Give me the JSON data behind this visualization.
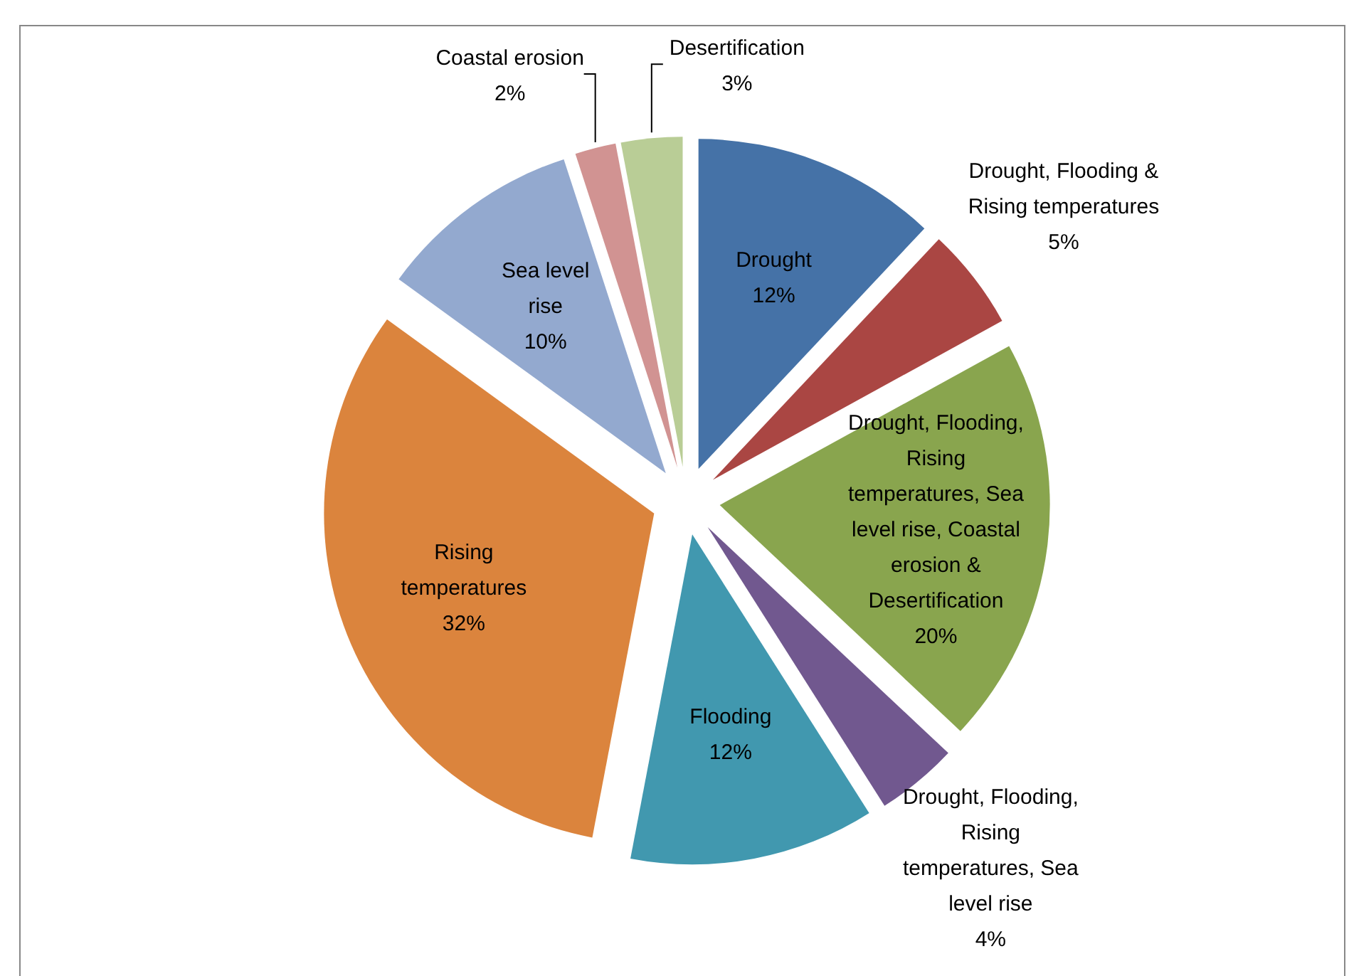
{
  "chart_data": {
    "type": "pie",
    "categories": [
      "Drought",
      "Drought, Flooding & Rising temperatures",
      "Drought, Flooding, Rising temperatures, Sea level rise, Coastal erosion & Desertification",
      "Drought, Flooding, Rising temperatures, Sea level rise",
      "Flooding",
      "Rising temperatures",
      "Sea level rise",
      "Coastal erosion",
      "Desertification"
    ],
    "values": [
      12,
      5,
      20,
      4,
      12,
      32,
      10,
      2,
      3
    ],
    "value_labels": [
      "12%",
      "5%",
      "20%",
      "4%",
      "12%",
      "32%",
      "10%",
      "2%",
      "3%"
    ],
    "colors": [
      "#4572a7",
      "#aa4643",
      "#89a54e",
      "#71588f",
      "#4198af",
      "#db843d",
      "#93a9cf",
      "#d19392",
      "#b9cd96"
    ]
  }
}
